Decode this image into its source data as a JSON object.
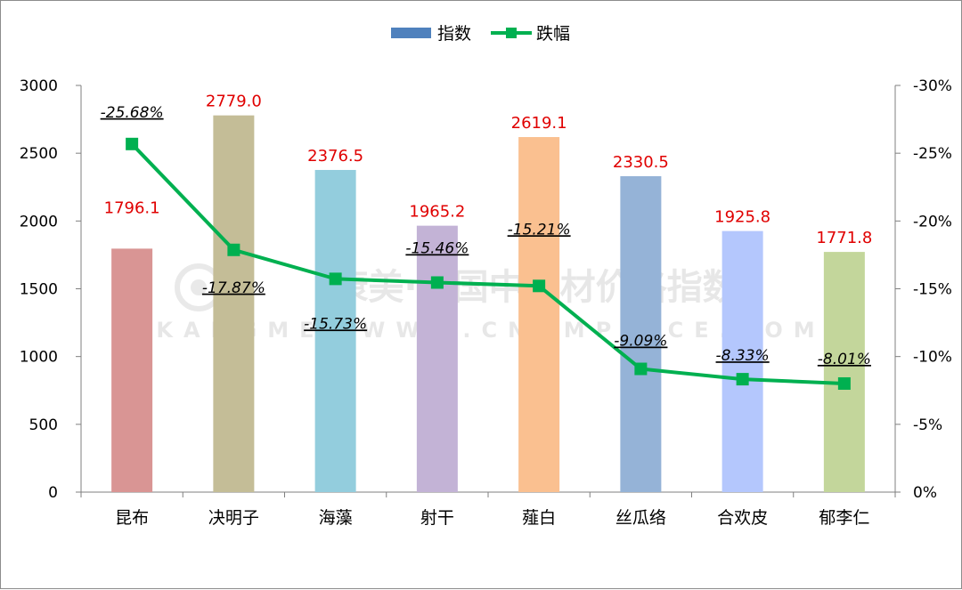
{
  "legend": {
    "bar_series": "指数",
    "line_series": "跌幅"
  },
  "watermark": {
    "cn": "康美·中国中药材价格指数",
    "en": "KANGMEI  WWW.CNKMPRICE.COM"
  },
  "chart_data": {
    "type": "bar",
    "categories": [
      "昆布",
      "决明子",
      "海藻",
      "射干",
      "薤白",
      "丝瓜络",
      "合欢皮",
      "郁李仁"
    ],
    "series": [
      {
        "name": "指数",
        "type": "bar",
        "axis": "left",
        "values": [
          1796.1,
          2779.0,
          2376.5,
          1965.2,
          2619.1,
          2330.5,
          1925.8,
          1771.8
        ],
        "labels": [
          "1796.1",
          "2779.0",
          "2376.5",
          "1965.2",
          "2619.1",
          "2330.5",
          "1925.8",
          "1771.8"
        ],
        "colors": [
          "#d99594",
          "#c4bd97",
          "#93cddd",
          "#c3b3d6",
          "#fac090",
          "#95b3d7",
          "#b4c7fd",
          "#c3d69b"
        ]
      },
      {
        "name": "跌幅",
        "type": "line",
        "axis": "right",
        "values": [
          -25.68,
          -17.87,
          -15.73,
          -15.46,
          -15.21,
          -9.09,
          -8.33,
          -8.01
        ],
        "labels": [
          "-25.68%",
          "-17.87%",
          "-15.73%",
          "-15.46%",
          "-15.21%",
          "-9.09%",
          "-8.33%",
          "-8.01%"
        ],
        "color": "#00b050"
      }
    ],
    "left_axis": {
      "ylim": [
        0,
        3000
      ],
      "ticks": [
        0,
        500,
        1000,
        1500,
        2000,
        2500,
        3000
      ],
      "tick_labels": [
        "0",
        "500",
        "1000",
        "1500",
        "2000",
        "2500",
        "3000"
      ]
    },
    "right_axis": {
      "ylim": [
        0,
        -30
      ],
      "inverted": true,
      "ticks": [
        0,
        -5,
        -10,
        -15,
        -20,
        -25,
        -30
      ],
      "tick_labels": [
        "0%",
        "-5%",
        "-10%",
        "-15%",
        "-20%",
        "-25%",
        "-30%"
      ]
    },
    "grid": false,
    "legend_position": "top-center"
  }
}
